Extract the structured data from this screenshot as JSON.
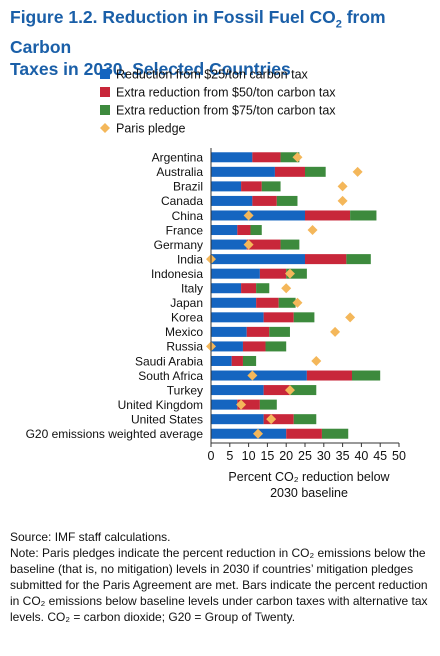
{
  "figure": {
    "title_prefix": "Figure 1.2. Reduction in Fossil Fuel CO",
    "title_sub": "2",
    "title_suffix": " from Carbon",
    "title_line2": "Taxes in 2030, Selected Countries",
    "source": "Source: IMF staff calculations.",
    "note": "Note: Paris pledges indicate the percent reduction in CO₂ emissions below the baseline (that is, no mitigation) levels in 2030 if countries’ mitigation pledges submitted for the Paris Agreement are met. Bars indicate the percent reduction in CO₂ emissions below baseline levels under carbon taxes with alternative tax levels. CO₂ = carbon dioxide; G20 = Group of Twenty."
  },
  "chart_data": {
    "type": "bar",
    "orientation": "horizontal",
    "stacked": true,
    "xlim": [
      0,
      50
    ],
    "xticks": [
      0,
      5,
      10,
      15,
      20,
      25,
      30,
      35,
      40,
      45,
      50
    ],
    "xlabel_line1": "Percent CO₂ reduction below",
    "xlabel_line2": "2030 baseline",
    "legend_position": "top-left",
    "categories": [
      "Argentina",
      "Australia",
      "Brazil",
      "Canada",
      "China",
      "France",
      "Germany",
      "India",
      "Indonesia",
      "Italy",
      "Japan",
      "Korea",
      "Mexico",
      "Russia",
      "Saudi Arabia",
      "South Africa",
      "Turkey",
      "United Kingdom",
      "United States",
      "G20 emissions weighted average"
    ],
    "series": [
      {
        "name": "Reduction from $25/ton carbon tax",
        "color": "#1565c0",
        "values": [
          11,
          17,
          8,
          11,
          25,
          7,
          9.5,
          25,
          13,
          8,
          12,
          14,
          9.5,
          8.5,
          5.5,
          25.5,
          14,
          7,
          14,
          20
        ]
      },
      {
        "name": "Extra reduction from $50/ton carbon tax",
        "color": "#c8273a",
        "values": [
          7.5,
          8,
          5.5,
          6.5,
          12,
          3.5,
          9,
          11,
          7,
          4,
          6,
          8,
          6,
          6,
          3,
          12,
          7,
          6,
          8,
          9.5
        ]
      },
      {
        "name": "Extra reduction from $75/ton carbon tax",
        "color": "#3d8a3d",
        "values": [
          5,
          5.5,
          5,
          5.5,
          7,
          3,
          5,
          6.5,
          5.5,
          3.5,
          4.5,
          5.5,
          5.5,
          5.5,
          3.5,
          7.5,
          7,
          4.5,
          6,
          7
        ]
      }
    ],
    "pledge": {
      "name": "Paris pledge",
      "color": "#f4b75a",
      "values": [
        23,
        39,
        35,
        35,
        10,
        27,
        10,
        0,
        21,
        20,
        23,
        37,
        33,
        0,
        28,
        11,
        21,
        8,
        16,
        12.5
      ]
    }
  }
}
